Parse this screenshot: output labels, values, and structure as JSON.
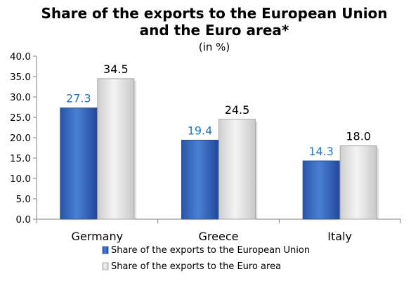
{
  "chart_data": {
    "type": "bar",
    "title": "Share of the exports to the European Union",
    "title_line2": "and the Euro area*",
    "subtitle": "(in %)",
    "categories": [
      "Germany",
      "Greece",
      "Italy"
    ],
    "series": [
      {
        "name": "Share of the exports to the European Union",
        "values": [
          27.3,
          19.4,
          14.3
        ],
        "color": "#3f6fc4",
        "label_color": "#2e75b6"
      },
      {
        "name": "Share of the exports to the Euro area",
        "values": [
          34.5,
          24.5,
          18.0
        ],
        "color": "#e8e8e8",
        "label_color": "#000000"
      }
    ],
    "ylim": [
      0,
      40
    ],
    "yticks": [
      "0.0",
      "5.0",
      "10.0",
      "15.0",
      "20.0",
      "25.0",
      "30.0",
      "35.0",
      "40.0"
    ],
    "value_labels": [
      [
        "27.3",
        "19.4",
        "14.3"
      ],
      [
        "34.5",
        "24.5",
        "18.0"
      ]
    ],
    "grid": false,
    "legend_position": "bottom"
  }
}
